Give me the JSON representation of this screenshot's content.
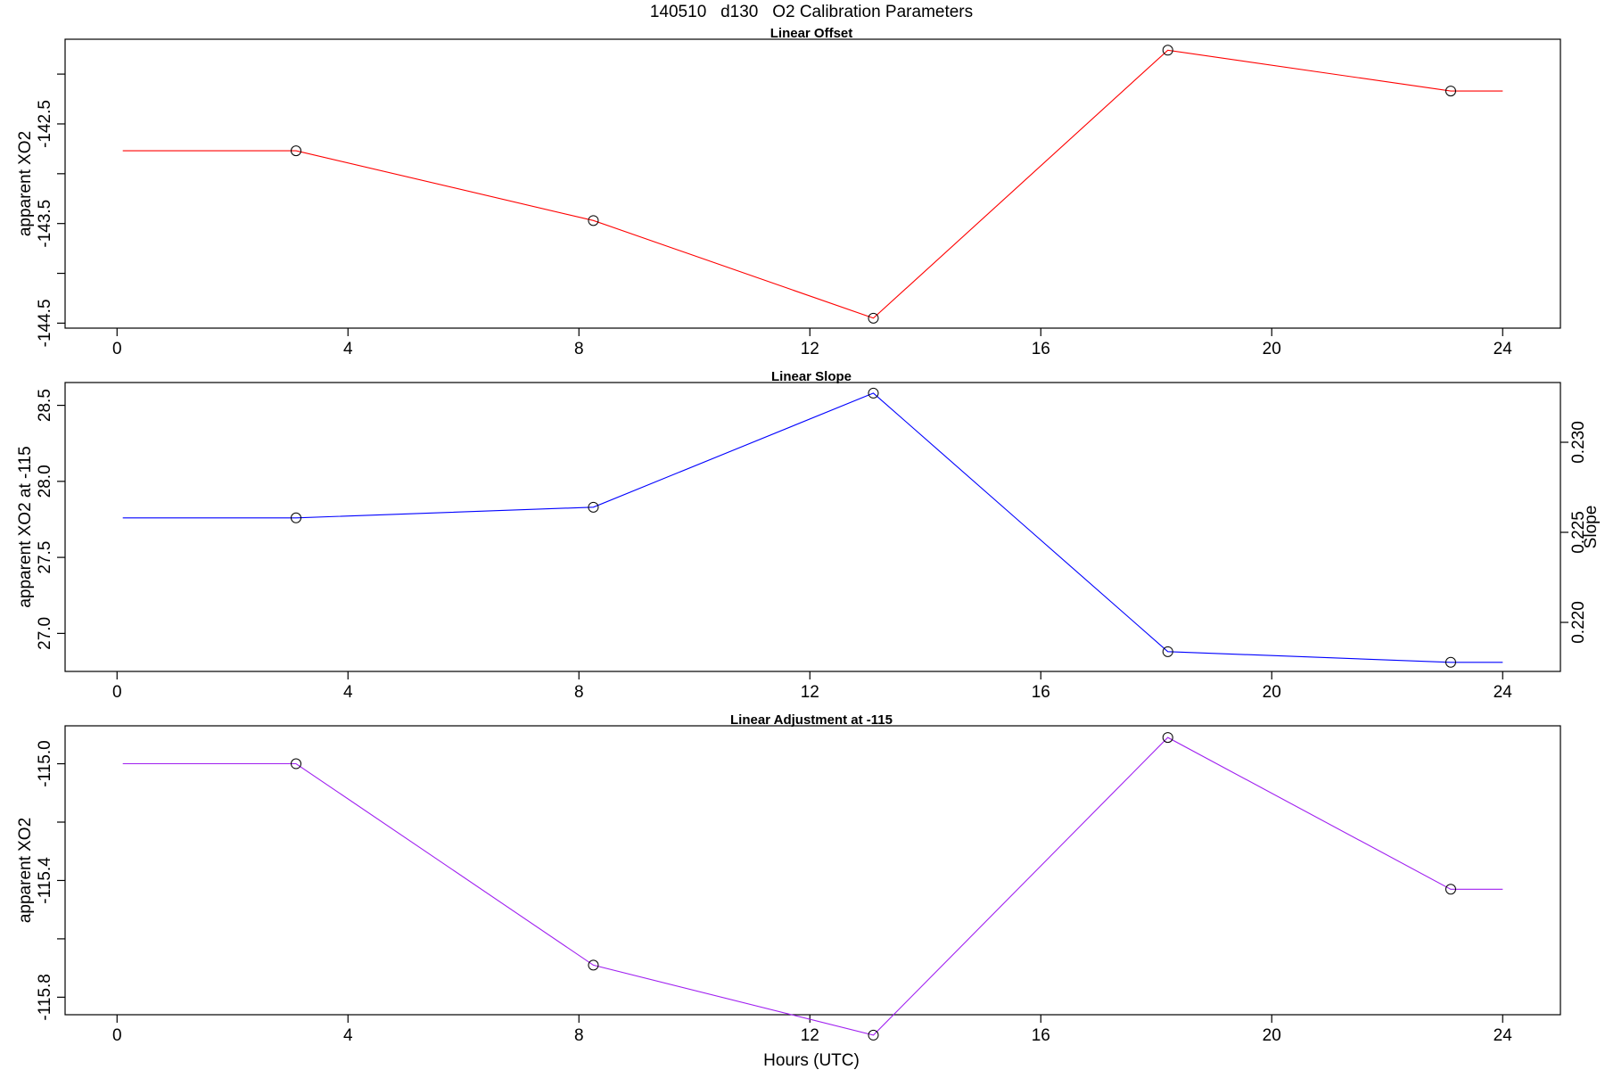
{
  "figure": {
    "title": "140510   d130   O2 Calibration Parameters",
    "xlabel": "Hours (UTC)"
  },
  "chart_data": [
    {
      "type": "line",
      "title": "Linear Offset",
      "xlabel": "",
      "ylabel": "apparent XO2",
      "color": "#ff0000",
      "xlim": [
        -0.9,
        25
      ],
      "ylim": [
        -144.55,
        -141.65
      ],
      "xticks": [
        0,
        4,
        8,
        12,
        16,
        20,
        24
      ],
      "yticks": [
        -144.5,
        -143.5,
        -142.5
      ],
      "yticks_minor": [
        -144,
        -143,
        -142
      ],
      "series": [
        {
          "x": [
            0.1,
            3.1,
            8.25,
            13.1,
            18.2,
            23.1,
            24
          ],
          "y": [
            -142.77,
            -142.77,
            -143.47,
            -144.45,
            -141.76,
            -142.17,
            -142.17
          ],
          "markers": [
            false,
            true,
            true,
            true,
            true,
            true,
            false
          ]
        }
      ]
    },
    {
      "type": "line",
      "title": "Linear Slope",
      "xlabel": "",
      "ylabel": "apparent XO2 at -115",
      "ylabel_right": "Slope",
      "color": "#0000ff",
      "xlim": [
        -0.9,
        25
      ],
      "ylim": [
        26.75,
        28.65
      ],
      "xticks": [
        0,
        4,
        8,
        12,
        16,
        20,
        24
      ],
      "yticks": [
        27.0,
        27.5,
        28.0,
        28.5
      ],
      "yticks_right": [
        0.22,
        0.225,
        0.23
      ],
      "yticks_right_values": [
        "0.220",
        "0.225",
        "0.230"
      ],
      "series": [
        {
          "x": [
            0.1,
            3.1,
            8.25,
            13.1,
            18.2,
            23.1,
            24
          ],
          "y": [
            27.76,
            27.76,
            27.83,
            28.58,
            26.88,
            26.81,
            26.81
          ],
          "markers": [
            false,
            true,
            true,
            true,
            true,
            true,
            false
          ]
        }
      ]
    },
    {
      "type": "line",
      "title": "Linear Adjustment at -115",
      "xlabel": "Hours (UTC)",
      "ylabel": "apparent XO2",
      "color": "#a020f0",
      "xlim": [
        -0.9,
        25
      ],
      "ylim": [
        -115.86,
        -114.87
      ],
      "xticks": [
        0,
        4,
        8,
        12,
        16,
        20,
        24
      ],
      "yticks": [
        -115.8,
        -115.4,
        -115.0
      ],
      "yticks_minor": [
        -115.6,
        -115.2
      ],
      "series": [
        {
          "x": [
            0.1,
            3.1,
            8.25,
            13.1,
            18.2,
            23.1,
            24
          ],
          "y": [
            -115.0,
            -115.0,
            -115.69,
            -115.93,
            -114.91,
            -115.43,
            -115.43
          ],
          "markers": [
            false,
            true,
            true,
            true,
            true,
            true,
            false
          ]
        }
      ]
    }
  ]
}
